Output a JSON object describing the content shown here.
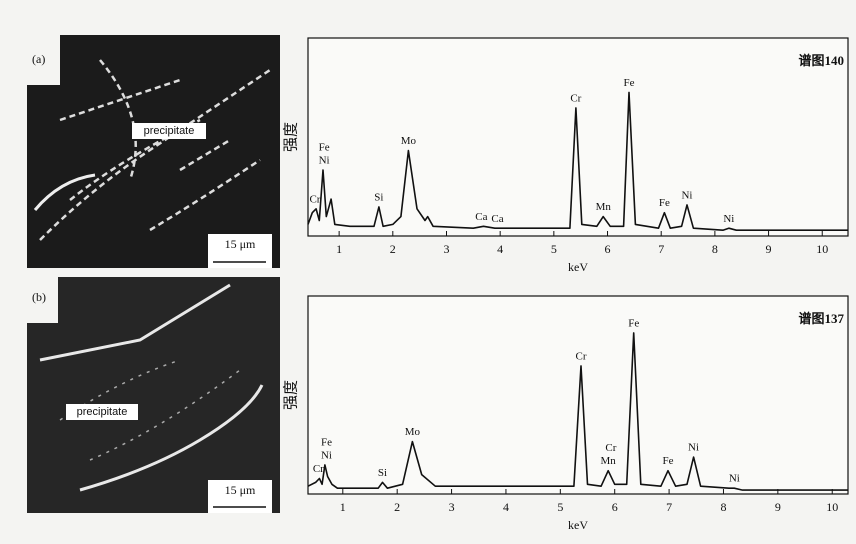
{
  "images": [
    {
      "label": "(a)",
      "annotation": "precipitate",
      "scale_bar": "15 μm"
    },
    {
      "label": "(b)",
      "annotation": "precipitate",
      "scale_bar": "15 μm"
    }
  ],
  "chart_data": [
    {
      "type": "line",
      "title": "谱图140",
      "x_label": "keV",
      "y_label": "强度",
      "color": "#111111",
      "xlim": [
        0.42,
        10.48
      ],
      "ylim": [
        -2,
        100
      ],
      "xticks": [
        1,
        2,
        3,
        4,
        5,
        6,
        7,
        8,
        9,
        10
      ],
      "x": [
        0.42,
        0.5,
        0.57,
        0.63,
        0.7,
        0.76,
        0.85,
        0.92,
        1.2,
        1.65,
        1.74,
        1.82,
        2.0,
        2.15,
        2.29,
        2.45,
        2.6,
        2.65,
        2.75,
        3.5,
        3.69,
        3.9,
        5.3,
        5.41,
        5.52,
        5.8,
        5.92,
        6.05,
        6.3,
        6.4,
        6.52,
        6.95,
        7.06,
        7.17,
        7.38,
        7.48,
        7.6,
        8.15,
        8.26,
        8.4,
        10.48
      ],
      "values": [
        4,
        10,
        12,
        6,
        32,
        8,
        17,
        4,
        3,
        3,
        13,
        3,
        4,
        8,
        42,
        12,
        6,
        8,
        3,
        2,
        3,
        2,
        2,
        64,
        4,
        3,
        8,
        3,
        3,
        72,
        4,
        2,
        10,
        2,
        3,
        14,
        2,
        1,
        2,
        1,
        1
      ],
      "annotations": [
        {
          "text": "Cr",
          "x": 0.55,
          "y": 12
        },
        {
          "text": "Ni",
          "x": 0.72,
          "y": 32
        },
        {
          "text": "Fe",
          "x": 0.72,
          "y": 32
        },
        {
          "text": "Si",
          "x": 1.74,
          "y": 13
        },
        {
          "text": "Mo",
          "x": 2.29,
          "y": 42
        },
        {
          "text": "Ca",
          "x": 3.65,
          "y": 3
        },
        {
          "text": "Ca",
          "x": 3.95,
          "y": 2
        },
        {
          "text": "Cr",
          "x": 5.41,
          "y": 64
        },
        {
          "text": "Mn",
          "x": 5.92,
          "y": 8
        },
        {
          "text": "Fe",
          "x": 6.4,
          "y": 72
        },
        {
          "text": "Fe",
          "x": 7.06,
          "y": 10
        },
        {
          "text": "Ni",
          "x": 7.48,
          "y": 14
        },
        {
          "text": "Ni",
          "x": 8.26,
          "y": 2
        }
      ]
    },
    {
      "type": "line",
      "title": "谱图137",
      "x_label": "keV",
      "y_label": "强度",
      "color": "#111111",
      "xlim": [
        0.36,
        10.29
      ],
      "ylim": [
        -2,
        100
      ],
      "xticks": [
        1,
        2,
        3,
        4,
        5,
        6,
        7,
        8,
        9,
        10
      ],
      "x": [
        0.36,
        0.5,
        0.57,
        0.62,
        0.67,
        0.72,
        0.8,
        0.9,
        1.3,
        1.65,
        1.73,
        1.82,
        2.1,
        2.28,
        2.45,
        2.7,
        5.25,
        5.38,
        5.5,
        5.75,
        5.88,
        6.0,
        6.22,
        6.35,
        6.48,
        6.85,
        6.98,
        7.12,
        7.33,
        7.45,
        7.58,
        8.1,
        8.2,
        8.35,
        10.29
      ],
      "values": [
        2,
        4,
        6,
        3,
        13,
        7,
        3,
        1,
        1,
        1,
        4,
        1,
        3,
        25,
        8,
        2,
        2,
        64,
        3,
        2,
        10,
        3,
        3,
        81,
        3,
        2,
        10,
        2,
        3,
        17,
        2,
        1,
        1,
        0,
        0
      ],
      "annotations": [
        {
          "text": "Cr",
          "x": 0.55,
          "y": 6
        },
        {
          "text": "Ni",
          "x": 0.7,
          "y": 13
        },
        {
          "text": "Fe",
          "x": 0.7,
          "y": 13
        },
        {
          "text": "Si",
          "x": 1.73,
          "y": 4
        },
        {
          "text": "Mo",
          "x": 2.28,
          "y": 25
        },
        {
          "text": "Cr",
          "x": 5.38,
          "y": 64
        },
        {
          "text": "Mn",
          "x": 5.88,
          "y": 10
        },
        {
          "text": "Cr",
          "x": 5.93,
          "y": 10
        },
        {
          "text": "Fe",
          "x": 6.35,
          "y": 81
        },
        {
          "text": "Fe",
          "x": 6.98,
          "y": 10
        },
        {
          "text": "Ni",
          "x": 7.45,
          "y": 17
        },
        {
          "text": "Ni",
          "x": 8.2,
          "y": 1
        }
      ]
    }
  ]
}
